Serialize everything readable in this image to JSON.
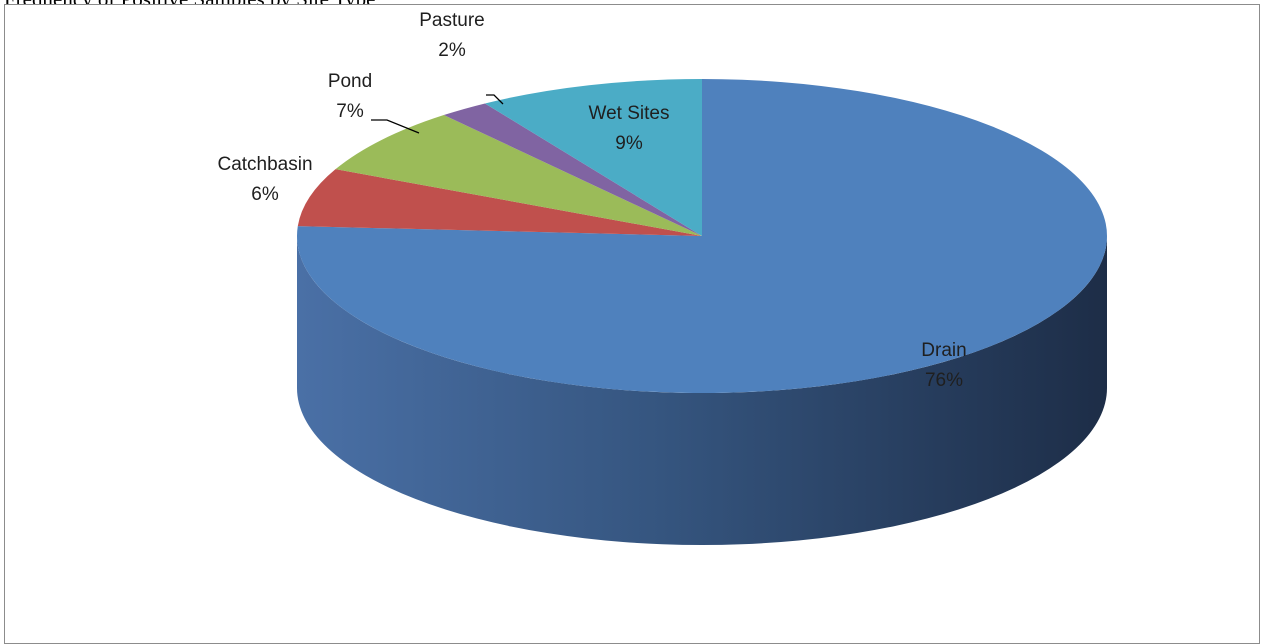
{
  "caption": "Frequency of Positive Samples by Site Type",
  "chart_data": {
    "type": "pie",
    "style": "3d",
    "title": "",
    "slices": [
      {
        "name": "Drain",
        "value": 76,
        "label": "76%",
        "color": "#4F81BD"
      },
      {
        "name": "Catchbasin",
        "value": 6,
        "label": "6%",
        "color": "#C0504D"
      },
      {
        "name": "Pond",
        "value": 7,
        "label": "7%",
        "color": "#9BBB59"
      },
      {
        "name": "Pasture",
        "value": 2,
        "label": "2%",
        "color": "#8064A2"
      },
      {
        "name": "Wet Sites",
        "value": 9,
        "label": "9%",
        "color": "#4BACC6"
      }
    ]
  }
}
